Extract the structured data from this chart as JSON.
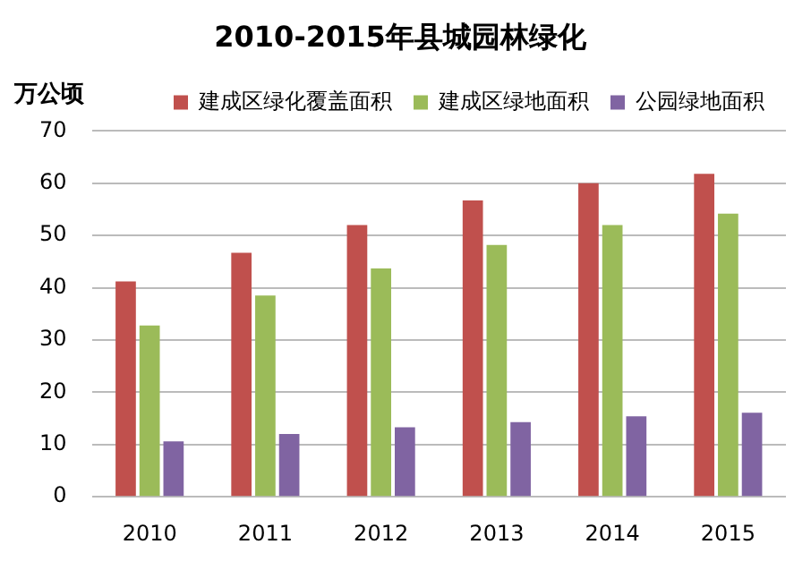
{
  "chart_data": {
    "type": "bar",
    "title": "2010-2015年县城园林绿化",
    "ylabel": "万公顷",
    "categories": [
      "2010",
      "2011",
      "2012",
      "2013",
      "2014",
      "2015"
    ],
    "series": [
      {
        "name": "建成区绿化覆盖面积",
        "color": "#c0504d",
        "values": [
          41.2,
          46.7,
          52,
          56.7,
          60,
          61.8
        ]
      },
      {
        "name": "建成区绿地面积",
        "color": "#9bbb59",
        "values": [
          32.8,
          38.5,
          43.7,
          48.2,
          52,
          54.2
        ]
      },
      {
        "name": "公园绿地面积",
        "color": "#8064a2",
        "values": [
          10.6,
          12,
          13.3,
          14.3,
          15.4,
          16.1
        ]
      }
    ],
    "ylim": [
      0,
      70
    ],
    "yticks": [
      0,
      10,
      20,
      30,
      40,
      50,
      60,
      70
    ],
    "grid": "y",
    "legend": "top"
  }
}
